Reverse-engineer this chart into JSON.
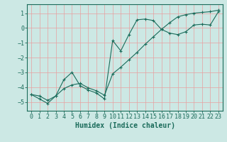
{
  "xlabel": "Humidex (Indice chaleur)",
  "bg_color": "#cce8e4",
  "grid_color": "#e8a0a0",
  "line_color": "#1a6b5a",
  "xlim": [
    -0.5,
    23.5
  ],
  "ylim": [
    -5.6,
    1.6
  ],
  "xticks": [
    0,
    1,
    2,
    3,
    4,
    5,
    6,
    7,
    8,
    9,
    10,
    11,
    12,
    13,
    14,
    15,
    16,
    17,
    18,
    19,
    20,
    21,
    22,
    23
  ],
  "yticks": [
    -5,
    -4,
    -3,
    -2,
    -1,
    0,
    1
  ],
  "curve1_x": [
    0,
    1,
    2,
    3,
    4,
    5,
    6,
    7,
    8,
    9,
    10,
    11,
    12,
    13,
    14,
    15,
    16,
    17,
    18,
    19,
    20,
    21,
    22,
    23
  ],
  "curve1_y": [
    -4.5,
    -4.8,
    -5.1,
    -4.6,
    -3.5,
    -3.0,
    -3.9,
    -4.2,
    -4.4,
    -4.8,
    -0.85,
    -1.55,
    -0.45,
    0.55,
    0.6,
    0.5,
    -0.1,
    -0.35,
    -0.45,
    -0.25,
    0.2,
    0.25,
    0.2,
    1.1
  ],
  "curve2_x": [
    0,
    1,
    2,
    3,
    4,
    5,
    6,
    7,
    8,
    9,
    10,
    11,
    12,
    13,
    14,
    15,
    16,
    17,
    18,
    19,
    20,
    21,
    22,
    23
  ],
  "curve2_y": [
    -4.5,
    -4.6,
    -4.9,
    -4.6,
    -4.1,
    -3.85,
    -3.75,
    -4.05,
    -4.25,
    -4.55,
    -3.1,
    -2.65,
    -2.15,
    -1.65,
    -1.1,
    -0.6,
    -0.1,
    0.35,
    0.75,
    0.9,
    1.0,
    1.05,
    1.1,
    1.2
  ],
  "tick_fontsize": 6,
  "xlabel_fontsize": 7
}
